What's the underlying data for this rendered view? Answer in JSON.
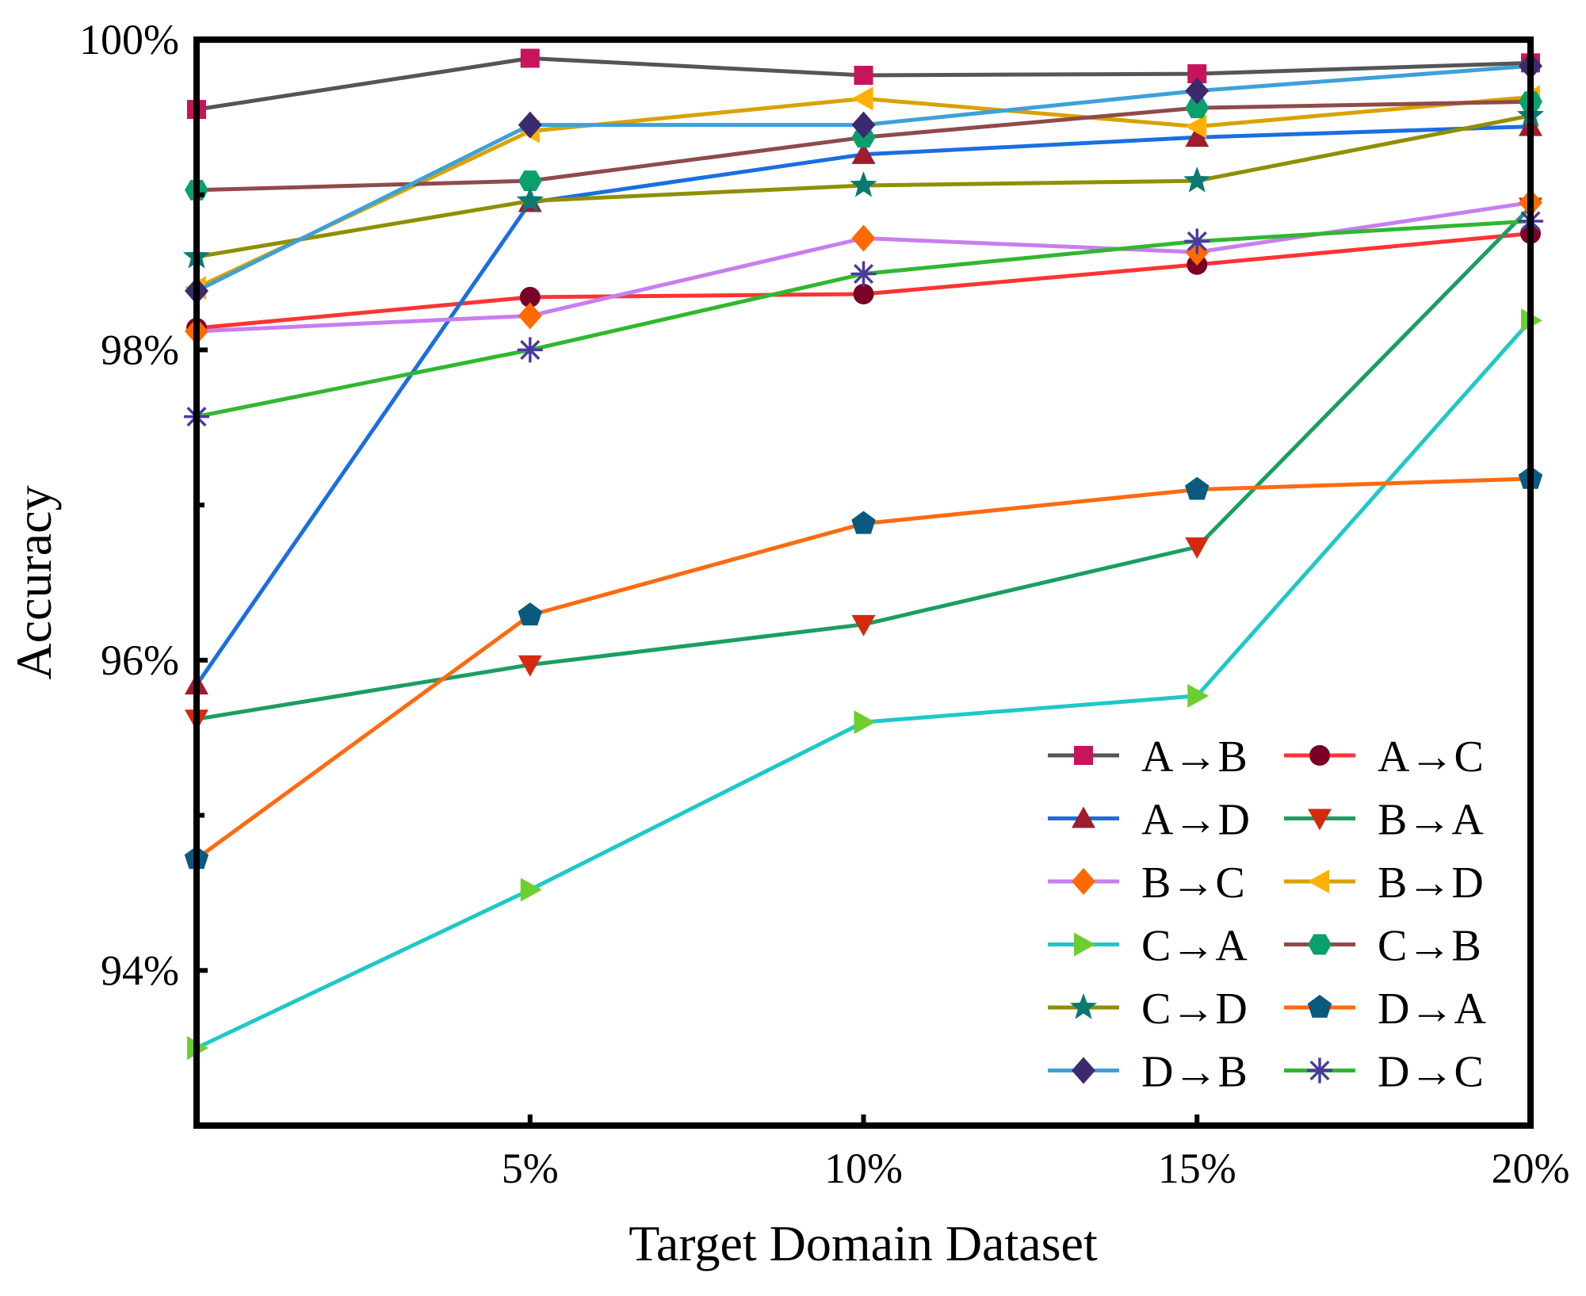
{
  "chart_data": {
    "type": "line",
    "title": "",
    "xlabel": "Target Domain Dataset",
    "ylabel": "Accuracy",
    "x": [
      0,
      5,
      10,
      15,
      20
    ],
    "x_tick_values": [
      5,
      10,
      15,
      20
    ],
    "x_tick_labels": [
      "5%",
      "10%",
      "15%",
      "20%"
    ],
    "xlim": [
      0,
      20
    ],
    "ylim": [
      93.0,
      100.0
    ],
    "y_tick_values": [
      94,
      96,
      98,
      100
    ],
    "y_tick_labels": [
      "94%",
      "96%",
      "98%",
      "100%"
    ],
    "y_minor_ticks": [
      95,
      97,
      99
    ],
    "grid": false,
    "legend_position": "bottom-right",
    "series": [
      {
        "name": "A→B",
        "marker": "square",
        "line_color": "#555555",
        "marker_color": "#c8145a",
        "values": [
          99.55,
          99.88,
          99.77,
          99.78,
          99.85
        ]
      },
      {
        "name": "A→C",
        "marker": "circle",
        "line_color": "#ff3333",
        "marker_color": "#7a0026",
        "values": [
          98.14,
          98.34,
          98.36,
          98.55,
          98.75
        ]
      },
      {
        "name": "A→D",
        "marker": "triangle-up",
        "line_color": "#1a6fe0",
        "marker_color": "#a01c2c",
        "values": [
          95.84,
          98.95,
          99.26,
          99.37,
          99.44
        ]
      },
      {
        "name": "B→A",
        "marker": "triangle-down",
        "line_color": "#1a9e62",
        "marker_color": "#d42a10",
        "values": [
          95.62,
          95.97,
          96.23,
          96.73,
          98.92
        ]
      },
      {
        "name": "B→C",
        "marker": "diamond",
        "line_color": "#c77ef0",
        "marker_color": "#ff6a00",
        "values": [
          98.12,
          98.22,
          98.72,
          98.63,
          98.95
        ]
      },
      {
        "name": "B→D",
        "marker": "triangle-left",
        "line_color": "#d9a200",
        "marker_color": "#ffb000",
        "values": [
          98.4,
          99.41,
          99.62,
          99.44,
          99.63
        ]
      },
      {
        "name": "C→A",
        "marker": "triangle-right",
        "line_color": "#1fc8c8",
        "marker_color": "#6ccf30",
        "values": [
          93.5,
          94.52,
          95.6,
          95.77,
          98.19
        ]
      },
      {
        "name": "C→B",
        "marker": "hexagon",
        "line_color": "#8f4a4a",
        "marker_color": "#0aa06e",
        "values": [
          99.03,
          99.09,
          99.37,
          99.56,
          99.6
        ]
      },
      {
        "name": "C→D",
        "marker": "star",
        "line_color": "#8f8f00",
        "marker_color": "#0a7a70",
        "values": [
          98.6,
          98.96,
          99.06,
          99.09,
          99.51
        ]
      },
      {
        "name": "D→A",
        "marker": "pentagon",
        "line_color": "#ff6a10",
        "marker_color": "#0a5a80",
        "values": [
          94.72,
          96.29,
          96.88,
          97.1,
          97.17
        ]
      },
      {
        "name": "D→B",
        "marker": "diamond",
        "line_color": "#3fa0d8",
        "marker_color": "#3b2a6e",
        "values": [
          98.38,
          99.45,
          99.45,
          99.67,
          99.83
        ]
      },
      {
        "name": "D→C",
        "marker": "asterisk",
        "line_color": "#2fb82f",
        "marker_color": "#4a3aa0",
        "values": [
          97.57,
          98.0,
          98.49,
          98.7,
          98.83
        ]
      }
    ]
  }
}
